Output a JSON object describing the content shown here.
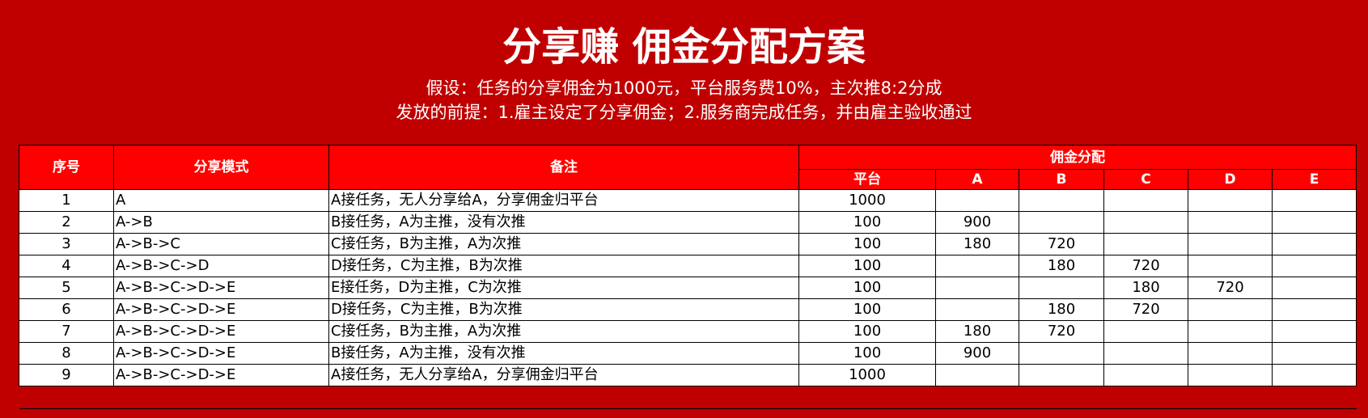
{
  "title": "分享赚 佣金分配方案",
  "subtitle_lines": [
    "假设：任务的分享佣金为1000元，平台服务费10%，主次推8:2分成",
    "发放的前提：1.雇主设定了分享佣金；2.服务商完成任务，并由雇主验收通过"
  ],
  "colors": {
    "background": "#C00000",
    "header": "#FF0000"
  },
  "table": {
    "headers": {
      "index": "序号",
      "mode": "分享模式",
      "note": "备注",
      "commission": "佣金分配",
      "sub": [
        "平台",
        "A",
        "B",
        "C",
        "D",
        "E"
      ]
    },
    "rows": [
      {
        "index": "1",
        "mode": "A",
        "note": "A接任务，无人分享给A，分享佣金归平台",
        "values": [
          "1000",
          "",
          "",
          "",
          "",
          ""
        ]
      },
      {
        "index": "2",
        "mode": "A->B",
        "note": "B接任务，A为主推，没有次推",
        "values": [
          "100",
          "900",
          "",
          "",
          "",
          ""
        ]
      },
      {
        "index": "3",
        "mode": "A->B->C",
        "note": "C接任务，B为主推，A为次推",
        "values": [
          "100",
          "180",
          "720",
          "",
          "",
          ""
        ]
      },
      {
        "index": "4",
        "mode": "A->B->C->D",
        "note": "D接任务，C为主推，B为次推",
        "values": [
          "100",
          "",
          "180",
          "720",
          "",
          ""
        ]
      },
      {
        "index": "5",
        "mode": "A->B->C->D->E",
        "note": "E接任务，D为主推，C为次推",
        "values": [
          "100",
          "",
          "",
          "180",
          "720",
          ""
        ]
      },
      {
        "index": "6",
        "mode": "A->B->C->D->E",
        "note": "D接任务，C为主推，B为次推",
        "values": [
          "100",
          "",
          "180",
          "720",
          "",
          ""
        ]
      },
      {
        "index": "7",
        "mode": "A->B->C->D->E",
        "note": "C接任务，B为主推，A为次推",
        "values": [
          "100",
          "180",
          "720",
          "",
          "",
          ""
        ]
      },
      {
        "index": "8",
        "mode": "A->B->C->D->E",
        "note": "B接任务，A为主推，没有次推",
        "values": [
          "100",
          "900",
          "",
          "",
          "",
          ""
        ]
      },
      {
        "index": "9",
        "mode": "A->B->C->D->E",
        "note": "A接任务，无人分享给A，分享佣金归平台",
        "values": [
          "1000",
          "",
          "",
          "",
          "",
          ""
        ]
      }
    ]
  }
}
